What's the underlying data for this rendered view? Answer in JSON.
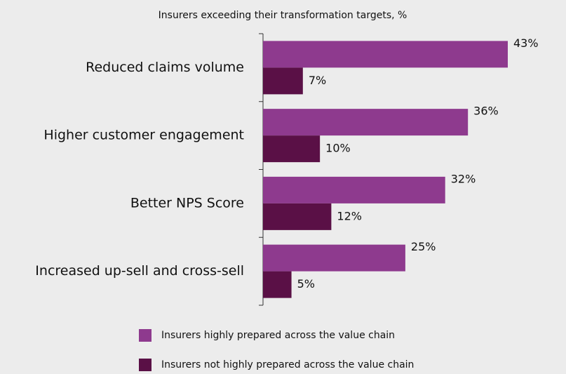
{
  "chart_data": {
    "type": "hbar",
    "title": "Insurers exceeding their transformation targets, %",
    "categories": [
      "Reduced claims volume",
      "Higher customer engagement",
      "Better NPS Score",
      "Increased up-sell and cross-sell"
    ],
    "series": [
      {
        "name": "Insurers highly prepared across the value chain",
        "color": "#8e3a8e",
        "values": [
          43,
          36,
          32,
          25
        ],
        "value_labels": [
          "43%",
          "36%",
          "32%",
          "25%"
        ]
      },
      {
        "name": "Insurers not highly prepared across the value chain",
        "color": "#5a1046",
        "values": [
          7,
          10,
          12,
          5
        ],
        "value_labels": [
          "7%",
          "10%",
          "12%",
          "5%"
        ]
      }
    ],
    "xlim": [
      0,
      43
    ]
  }
}
